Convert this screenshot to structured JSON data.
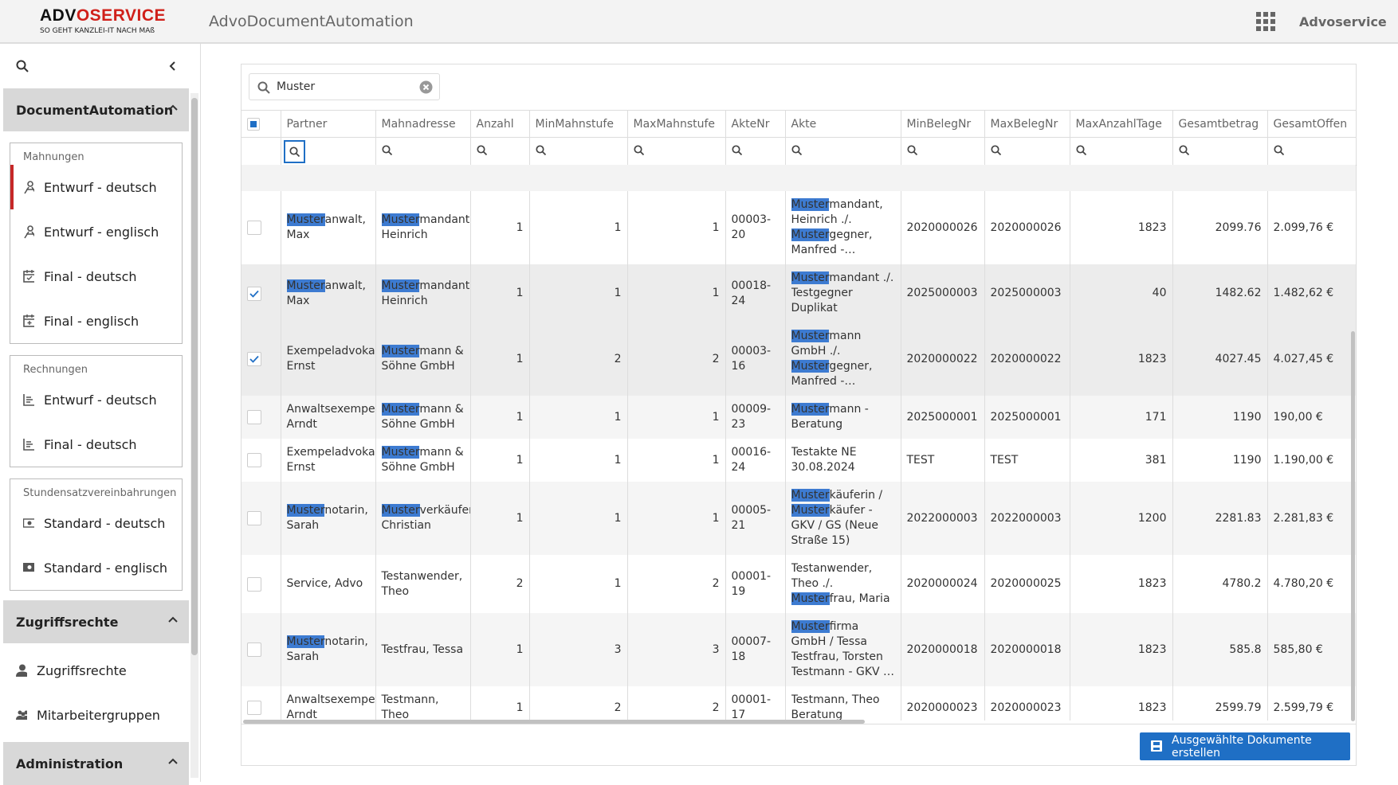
{
  "header": {
    "logo": "ADVOSERVICE",
    "slogan": "SO GEHT KANZLEI-IT NACH MAß",
    "app_title": "AdvoDocumentAutomation",
    "user": "Advoservice"
  },
  "sidebar": {
    "sections": [
      {
        "title": "DocumentAutomation",
        "groups": [
          {
            "label": "Mahnungen",
            "items": [
              "Entwurf - deutsch",
              "Entwurf - englisch",
              "Final - deutsch",
              "Final - englisch"
            ]
          },
          {
            "label": "Rechnungen",
            "items": [
              "Entwurf - deutsch",
              "Final - deutsch"
            ]
          },
          {
            "label": "Stundensatzvereinbahrungen",
            "items": [
              "Standard - deutsch",
              "Standard - englisch"
            ]
          }
        ]
      },
      {
        "title": "Zugriffsrechte",
        "items": [
          "Zugriffsrechte",
          "Mitarbeitergruppen"
        ]
      },
      {
        "title": "Administration"
      }
    ]
  },
  "search": {
    "value": "Muster"
  },
  "table": {
    "columns": [
      "Partner",
      "Mahnadresse",
      "Anzahl",
      "MinMahnstufe",
      "MaxMahnstufe",
      "AkteNr",
      "Akte",
      "MinBelegNr",
      "MaxBelegNr",
      "MaxAnzahlTage",
      "Gesamtbetrag",
      "GesamtOffen"
    ],
    "rows": [
      {
        "selected": false,
        "cells": [
          "Musteranwalt, Max",
          "Mustermandant, Heinrich",
          "1",
          "1",
          "1",
          "00003-20",
          "Mustermandant, Heinrich ./. Mustergegner, Manfred - Forderung aus Kaufvertrag",
          "2020000026",
          "2020000026",
          "1823",
          "2099.76",
          "2.099,76 €"
        ]
      },
      {
        "selected": true,
        "cells": [
          "Musteranwalt, Max",
          "Mustermandant, Heinrich",
          "1",
          "1",
          "1",
          "00018-24",
          "Mustermandant ./. Testgegner Duplikat",
          "2025000003",
          "2025000003",
          "40",
          "1482.62",
          "1.482,62 €"
        ]
      },
      {
        "selected": true,
        "cells": [
          "Exempeladvokat, Ernst",
          "Mustermann & Söhne GmbH",
          "1",
          "2",
          "2",
          "00003-16",
          "Mustermann GmbH ./. Mustergegner, Manfred - Zwangsvollstrecku...",
          "2020000022",
          "2020000022",
          "1823",
          "4027.45",
          "4.027,45 €"
        ]
      },
      {
        "selected": false,
        "cells": [
          "Anwaltsexempel, Arndt",
          "Mustermann & Söhne GmbH",
          "1",
          "1",
          "1",
          "00009-23",
          "Mustermann - Beratung",
          "2025000001",
          "2025000001",
          "171",
          "1190",
          "190,00 €"
        ]
      },
      {
        "selected": false,
        "cells": [
          "Exempeladvokat, Ernst",
          "Mustermann & Söhne GmbH",
          "1",
          "1",
          "1",
          "00016-24",
          "Testakte NE 30.08.2024",
          "TEST",
          "TEST",
          "381",
          "1190",
          "1.190,00 €"
        ]
      },
      {
        "selected": false,
        "cells": [
          "Musternotarin, Sarah",
          "Musterverkäufer, Christian",
          "1",
          "1",
          "1",
          "00005-21",
          "Musterkäuferin / Musterkäufer - GKV / GS (Neue Straße 15)",
          "2022000003",
          "2022000003",
          "1200",
          "2281.83",
          "2.281,83 €"
        ]
      },
      {
        "selected": false,
        "cells": [
          "Service, Advo",
          "Testanwender, Theo",
          "2",
          "1",
          "2",
          "00001-19",
          "Testanwender, Theo ./. Musterfrau, Maria",
          "2020000024",
          "2020000025",
          "1823",
          "4780.2",
          "4.780,20 €"
        ]
      },
      {
        "selected": false,
        "cells": [
          "Musternotarin, Sarah",
          "Testfrau, Tessa",
          "1",
          "3",
          "3",
          "00007-18",
          "Musterfirma GmbH / Tessa Testfrau, Torsten Testmann - GKV / GS",
          "2020000018",
          "2020000018",
          "1823",
          "585.8",
          "585,80 €"
        ]
      },
      {
        "selected": false,
        "cells": [
          "Anwaltsexempel, Arndt",
          "Testmann, Theo",
          "1",
          "2",
          "2",
          "00001-17",
          "Testmann, Theo Beratung",
          "2020000023",
          "2020000023",
          "1823",
          "2599.79",
          "2.599,79 €"
        ]
      }
    ]
  },
  "button": "Ausgewählte Dokumente erstellen"
}
